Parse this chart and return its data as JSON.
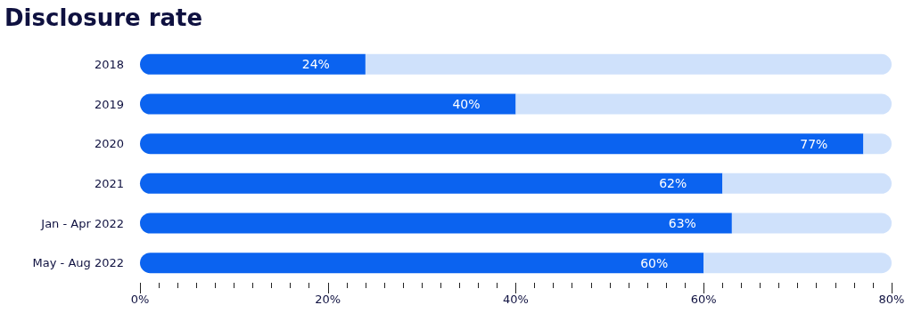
{
  "chart_data": {
    "type": "bar",
    "orientation": "horizontal",
    "stacked": true,
    "title": "Disclosure rate",
    "categories": [
      "2018",
      "2019",
      "2020",
      "2021",
      "Jan - Apr 2022",
      "May - Aug 2022"
    ],
    "series": [
      {
        "color": "#0b63f0",
        "values": [
          24,
          40,
          77,
          62,
          63,
          60
        ],
        "value_labels": [
          "24%",
          "40%",
          "77%",
          "62%",
          "63%",
          "60%"
        ]
      },
      {
        "color": "#cfe1fb",
        "values": [
          56,
          40,
          3,
          18,
          17,
          20
        ]
      }
    ],
    "xlim": [
      0,
      80
    ],
    "xticks": [
      {
        "value": 0,
        "label": "0%"
      },
      {
        "value": 20,
        "label": "20%"
      },
      {
        "value": 40,
        "label": "40%"
      },
      {
        "value": 60,
        "label": "60%"
      },
      {
        "value": 80,
        "label": "80%"
      }
    ],
    "grid": false
  }
}
